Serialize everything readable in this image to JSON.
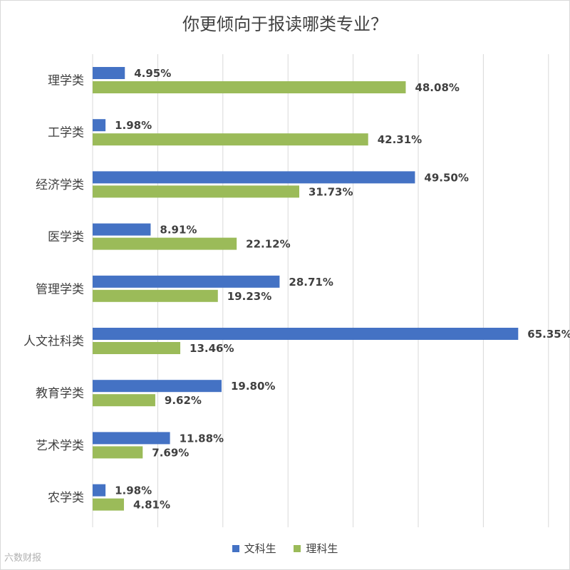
{
  "colors": {
    "series_1": "#4472c4",
    "series_2": "#9bbb59",
    "grid": "#d9d9d9",
    "text": "#404040"
  },
  "watermark": "六数财报",
  "chart_data": {
    "type": "bar",
    "orientation": "horizontal",
    "title": "你更倾向于报读哪类专业？",
    "categories": [
      "理学类",
      "工学类",
      "经济学类",
      "医学类",
      "管理学类",
      "人文社科类",
      "教育学类",
      "艺术学类",
      "农学类"
    ],
    "series": [
      {
        "name": "文科生",
        "values": [
          4.95,
          1.98,
          49.5,
          8.91,
          28.71,
          65.35,
          19.8,
          11.88,
          1.98
        ],
        "labels": [
          "4.95%",
          "1.98%",
          "49.50%",
          "8.91%",
          "28.71%",
          "65.35%",
          "19.80%",
          "11.88%",
          "1.98%"
        ]
      },
      {
        "name": "理科生",
        "values": [
          48.08,
          42.31,
          31.73,
          22.12,
          19.23,
          13.46,
          9.62,
          7.69,
          4.81
        ],
        "labels": [
          "48.08%",
          "42.31%",
          "31.73%",
          "22.12%",
          "19.23%",
          "13.46%",
          "9.62%",
          "7.69%",
          "4.81%"
        ]
      }
    ],
    "xlim": [
      0,
      70
    ],
    "grid": true,
    "legend_position": "bottom"
  }
}
